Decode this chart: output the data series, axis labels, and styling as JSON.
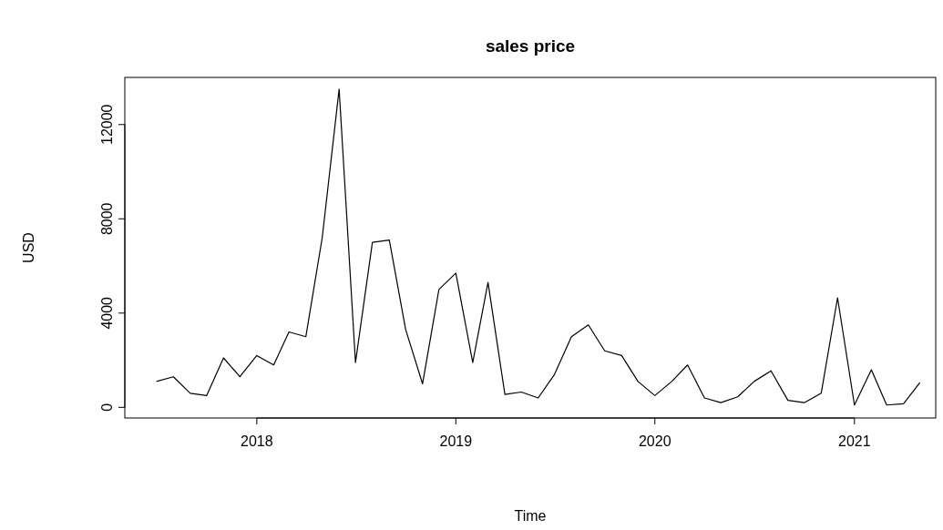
{
  "chart_data": {
    "type": "line",
    "title": "sales price",
    "xlabel": "Time",
    "ylabel": "USD",
    "x": [
      "2017-07",
      "2017-08",
      "2017-09",
      "2017-10",
      "2017-11",
      "2017-12",
      "2018-01",
      "2018-02",
      "2018-03",
      "2018-04",
      "2018-05",
      "2018-06",
      "2018-07",
      "2018-08",
      "2018-09",
      "2018-10",
      "2018-11",
      "2018-12",
      "2019-01",
      "2019-02",
      "2019-03",
      "2019-04",
      "2019-05",
      "2019-06",
      "2019-07",
      "2019-08",
      "2019-09",
      "2019-10",
      "2019-11",
      "2019-12",
      "2020-01",
      "2020-02",
      "2020-03",
      "2020-04",
      "2020-05",
      "2020-06",
      "2020-07",
      "2020-08",
      "2020-09",
      "2020-10",
      "2020-11",
      "2020-12",
      "2021-01",
      "2021-02",
      "2021-03",
      "2021-04",
      "2021-05"
    ],
    "series": [
      {
        "color": "#000000",
        "values": [
          1100,
          1300,
          600,
          500,
          2100,
          1300,
          2200,
          1800,
          3200,
          3000,
          7200,
          13500,
          1900,
          7000,
          7100,
          3300,
          1000,
          5000,
          5700,
          1900,
          5300,
          550,
          650,
          400,
          1400,
          3000,
          3500,
          2400,
          2200,
          1100,
          500,
          1100,
          1800,
          400,
          200,
          450,
          1100,
          1550,
          300,
          200,
          600,
          4650,
          100,
          1600,
          100,
          150,
          1050
        ]
      }
    ],
    "xlim": [
      "2017-05-04",
      "2021-05-30"
    ],
    "xticks": [
      {
        "value": "2018",
        "label": "2018"
      },
      {
        "value": "2019",
        "label": "2019"
      },
      {
        "value": "2020",
        "label": "2020"
      },
      {
        "value": "2021",
        "label": "2021"
      }
    ],
    "ylim": [
      -450,
      14000
    ],
    "yticks": [
      0,
      4000,
      8000,
      12000
    ],
    "marker": "none",
    "line_style": "solid"
  }
}
